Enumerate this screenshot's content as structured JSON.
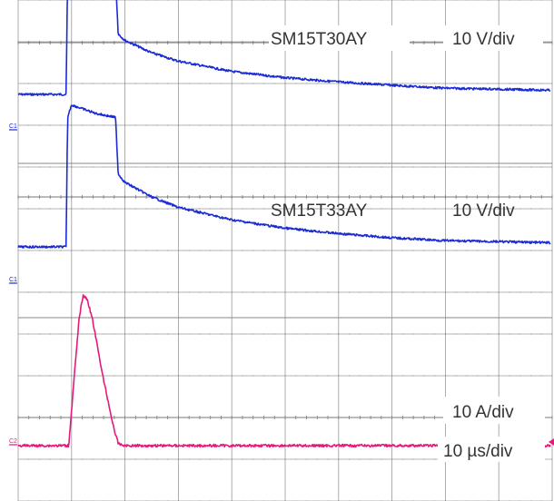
{
  "figure": {
    "labels": {
      "panel1_part": "SM15T30AY",
      "panel1_scale": "10 V/div",
      "panel2_part": "SM15T33AY",
      "panel2_scale": "10 V/div",
      "current_scale": "10 A/div",
      "time_scale": "10 µs/div",
      "ch1_marker_top": "C1",
      "ch1_marker_mid": "C1",
      "ch2_marker": "C2"
    },
    "colors": {
      "voltage_trace": "#1a2bd6",
      "current_trace": "#e6197a",
      "grid": "#9a9a9a",
      "marker_blue": "#1a2bd6",
      "marker_pink": "#e6197a"
    }
  },
  "chart_data": [
    {
      "type": "line",
      "title": "SM15T30AY",
      "unit": "10 V/div",
      "x_unit": "10 µs/div",
      "series": [
        {
          "name": "SM15T30AY",
          "x": [
            0,
            9.0,
            9.3,
            10.0,
            14.5,
            18.3,
            18.8,
            20,
            25,
            30,
            40,
            50,
            60,
            70,
            80,
            100
          ],
          "y": [
            0,
            0,
            2.8,
            3.1,
            2.9,
            2.8,
            1.45,
            1.3,
            1.0,
            0.8,
            0.55,
            0.4,
            0.3,
            0.22,
            0.15,
            0.1
          ]
        }
      ]
    },
    {
      "type": "line",
      "title": "SM15T33AY",
      "unit": "10 V/div",
      "x_unit": "10 µs/div",
      "series": [
        {
          "name": "SM15T33AY",
          "x": [
            0,
            9.0,
            9.3,
            10.0,
            14.5,
            18.3,
            18.8,
            20,
            25,
            30,
            40,
            50,
            60,
            70,
            80,
            100
          ],
          "y": [
            0,
            0,
            3.1,
            3.4,
            3.2,
            3.1,
            1.75,
            1.55,
            1.2,
            0.95,
            0.65,
            0.45,
            0.32,
            0.22,
            0.15,
            0.1
          ]
        }
      ]
    },
    {
      "type": "line",
      "unit": "10 A/div",
      "x_unit": "10 µs/div",
      "series": [
        {
          "x": [
            0,
            9.5,
            10.5,
            11.5,
            12.2,
            13.0,
            14.0,
            15.0,
            16.0,
            17.0,
            18.0,
            18.8,
            20,
            100
          ],
          "y": [
            0,
            0,
            1.6,
            3.1,
            3.6,
            3.5,
            3.0,
            2.3,
            1.6,
            1.0,
            0.4,
            0.05,
            0,
            0
          ]
        }
      ]
    }
  ]
}
